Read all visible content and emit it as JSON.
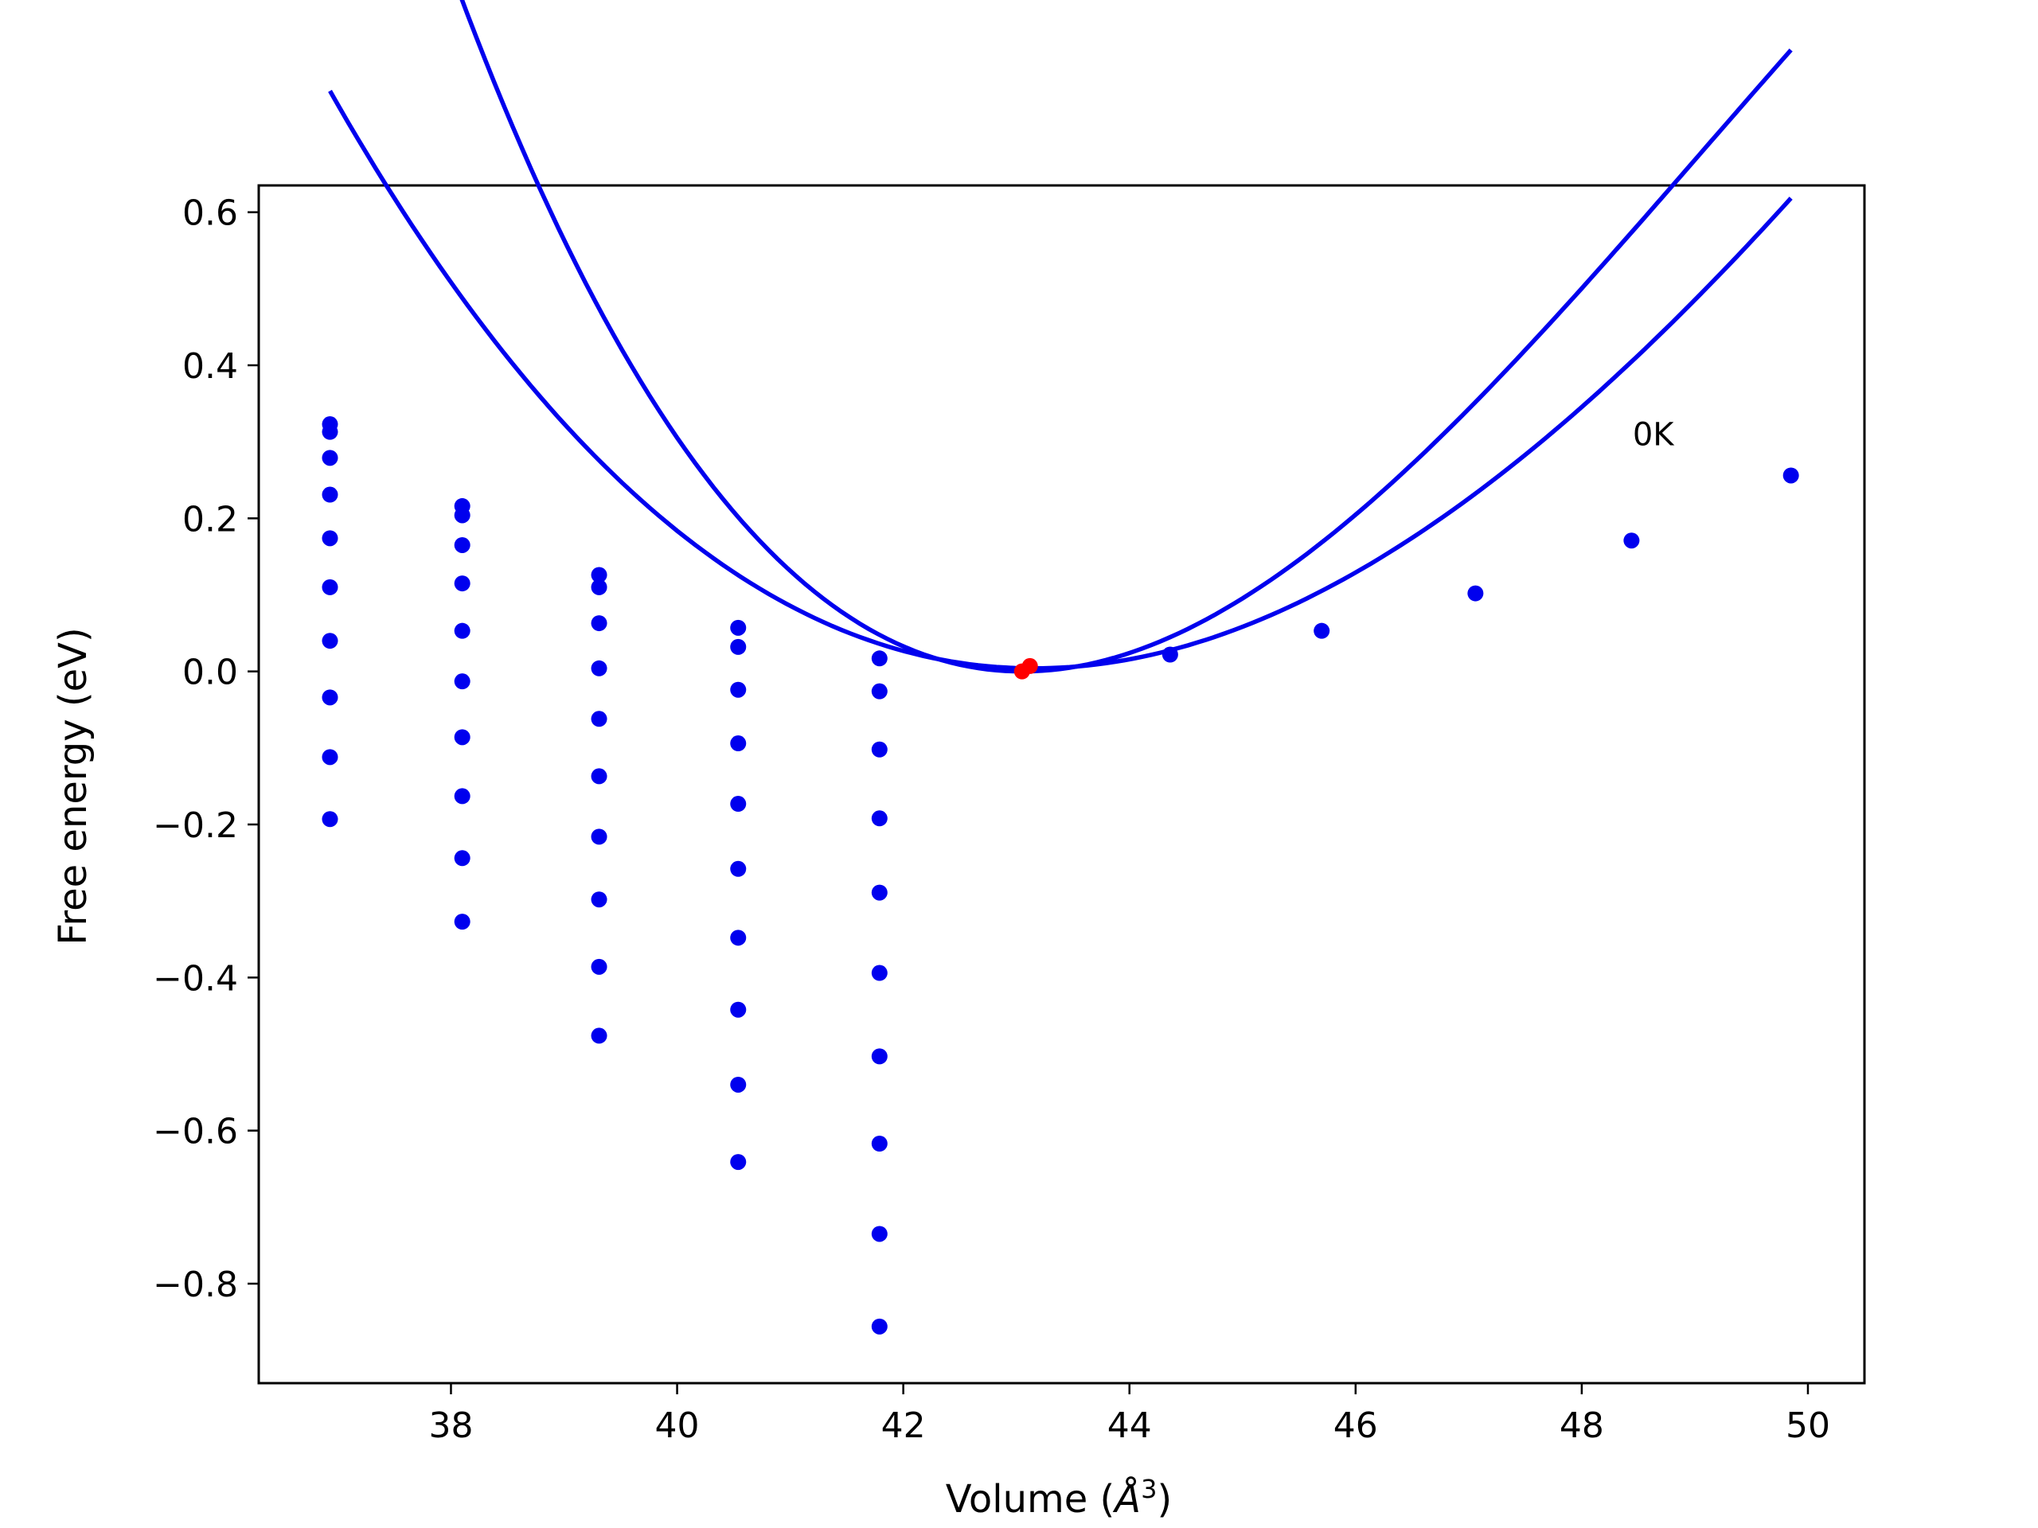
{
  "chart_data": {
    "type": "scatter",
    "title": "",
    "xlabel_main": "Volume (",
    "xlabel_unit": "Å",
    "xlabel_exp": "3",
    "xlabel_close": ")",
    "ylabel": "Free energy (eV)",
    "xlim": [
      36.3,
      50.5
    ],
    "ylim": [
      -0.93,
      0.635
    ],
    "xticks": [
      38,
      40,
      42,
      44,
      46,
      48,
      50
    ],
    "yticks": [
      0.6,
      0.4,
      0.2,
      0.0,
      -0.2,
      -0.4,
      -0.6,
      -0.8
    ],
    "ytick_labels": [
      "0.6",
      "0.4",
      "0.2",
      "0.0",
      "−0.2",
      "−0.4",
      "−0.6",
      "−0.8"
    ],
    "grid": false,
    "annotations": [
      {
        "text": "0K",
        "x": 48.45,
        "y": 0.31
      }
    ],
    "series": [
      {
        "kind": "points",
        "color": "#0000ee",
        "points": [
          [
            36.93,
            0.323
          ],
          [
            36.93,
            0.313
          ],
          [
            36.93,
            0.279
          ],
          [
            36.93,
            0.231
          ],
          [
            36.93,
            0.174
          ],
          [
            36.93,
            0.11
          ],
          [
            36.93,
            0.04
          ],
          [
            36.93,
            -0.034
          ],
          [
            36.93,
            -0.112
          ],
          [
            36.93,
            -0.193
          ],
          [
            38.1,
            0.216
          ],
          [
            38.1,
            0.204
          ],
          [
            38.1,
            0.165
          ],
          [
            38.1,
            0.115
          ],
          [
            38.1,
            0.053
          ],
          [
            38.1,
            -0.013
          ],
          [
            38.1,
            -0.086
          ],
          [
            38.1,
            -0.163
          ],
          [
            38.1,
            -0.244
          ],
          [
            38.1,
            -0.327
          ],
          [
            39.31,
            0.126
          ],
          [
            39.31,
            0.11
          ],
          [
            39.31,
            0.063
          ],
          [
            39.31,
            0.004
          ],
          [
            39.31,
            -0.062
          ],
          [
            39.31,
            -0.137
          ],
          [
            39.31,
            -0.216
          ],
          [
            39.31,
            -0.298
          ],
          [
            39.31,
            -0.386
          ],
          [
            39.31,
            -0.476
          ],
          [
            40.54,
            0.057
          ],
          [
            40.54,
            0.032
          ],
          [
            40.54,
            -0.024
          ],
          [
            40.54,
            -0.094
          ],
          [
            40.54,
            -0.173
          ],
          [
            40.54,
            -0.258
          ],
          [
            40.54,
            -0.348
          ],
          [
            40.54,
            -0.442
          ],
          [
            40.54,
            -0.54
          ],
          [
            40.54,
            -0.641
          ],
          [
            41.79,
            0.017
          ],
          [
            41.79,
            -0.026
          ],
          [
            41.79,
            -0.102
          ],
          [
            41.79,
            -0.192
          ],
          [
            41.79,
            -0.289
          ],
          [
            41.79,
            -0.394
          ],
          [
            41.79,
            -0.503
          ],
          [
            41.79,
            -0.617
          ],
          [
            41.79,
            -0.735
          ],
          [
            41.79,
            -0.856
          ],
          [
            44.36,
            0.022
          ],
          [
            45.7,
            0.053
          ],
          [
            47.06,
            0.102
          ],
          [
            48.44,
            0.171
          ],
          [
            49.85,
            0.256
          ]
        ]
      },
      {
        "kind": "points",
        "color": "#ff0000",
        "points": [
          [
            43.05,
            0.0
          ],
          [
            43.12,
            0.007
          ]
        ]
      },
      {
        "kind": "curve",
        "label": "0K",
        "color": "#0000ee",
        "vmin": 43.05,
        "emin": 0.0,
        "coef": [
          0.0281,
          -0.00155
        ],
        "x_range": [
          36.93,
          49.85
        ]
      },
      {
        "kind": "curve",
        "color": "#0000ee",
        "vmin": 43.15,
        "emin": 0.004,
        "coef": [
          0.0167,
          -0.00045
        ],
        "x_range": [
          36.93,
          49.85
        ]
      }
    ]
  }
}
